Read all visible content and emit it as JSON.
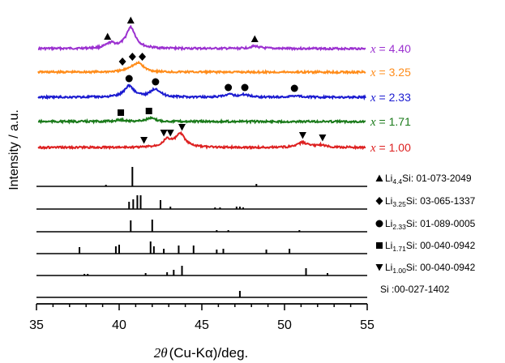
{
  "chart_data": {
    "type": "line",
    "xlabel": "2θ (Cu-Kα)/deg.",
    "xlabel_parts": {
      "theta": "2θ",
      "rest": "(Cu-Kα)/deg."
    },
    "ylabel": "Intensity / a.u.",
    "xlim": [
      35,
      55
    ],
    "x_ticks": [
      35,
      40,
      45,
      50,
      55
    ],
    "series": [
      {
        "name": "x = 4.40",
        "label": {
          "prefix": "x",
          "value": " = 4.40"
        },
        "color": "#9b30d0",
        "peaks": [
          {
            "x": 39.5,
            "h": 6
          },
          {
            "x": 40.7,
            "h": 26
          },
          {
            "x": 48.2,
            "h": 3
          }
        ],
        "markers": [
          {
            "x": 39.3,
            "symbol": "triangle-up"
          },
          {
            "x": 40.7,
            "symbol": "triangle-up"
          },
          {
            "x": 48.2,
            "symbol": "triangle-up"
          }
        ]
      },
      {
        "name": "x = 3.25",
        "label": {
          "prefix": "x",
          "value": " = 3.25"
        },
        "color": "#ff8c1a",
        "peaks": [
          {
            "x": 40.7,
            "h": 4
          },
          {
            "x": 41.2,
            "h": 10
          }
        ],
        "markers": [
          {
            "x": 40.2,
            "symbol": "diamond"
          },
          {
            "x": 40.8,
            "symbol": "diamond"
          },
          {
            "x": 41.4,
            "symbol": "diamond"
          }
        ]
      },
      {
        "name": "x = 2.33",
        "label": {
          "prefix": "x",
          "value": " = 2.33"
        },
        "color": "#1a1ad0",
        "peaks": [
          {
            "x": 40.6,
            "h": 14
          },
          {
            "x": 42.2,
            "h": 10
          },
          {
            "x": 46.7,
            "h": 3
          },
          {
            "x": 47.6,
            "h": 3
          },
          {
            "x": 50.7,
            "h": 2
          }
        ],
        "markers": [
          {
            "x": 40.6,
            "symbol": "circle"
          },
          {
            "x": 42.2,
            "symbol": "circle"
          },
          {
            "x": 46.6,
            "symbol": "circle"
          },
          {
            "x": 47.6,
            "symbol": "circle"
          },
          {
            "x": 50.6,
            "symbol": "circle"
          }
        ]
      },
      {
        "name": "x = 1.71",
        "label": {
          "prefix": "x",
          "value": " = 1.71"
        },
        "color": "#1a7a1a",
        "peaks": [
          {
            "x": 40.1,
            "h": 2
          },
          {
            "x": 41.9,
            "h": 4
          }
        ],
        "markers": [
          {
            "x": 40.1,
            "symbol": "square"
          },
          {
            "x": 41.8,
            "symbol": "square"
          }
        ]
      },
      {
        "name": "x = 1.00",
        "label": {
          "prefix": "x",
          "value": " = 1.00"
        },
        "color": "#dd2020",
        "peaks": [
          {
            "x": 42.9,
            "h": 9
          },
          {
            "x": 43.7,
            "h": 16
          },
          {
            "x": 51.1,
            "h": 6
          },
          {
            "x": 52.2,
            "h": 3
          }
        ],
        "markers": [
          {
            "x": 41.5,
            "symbol": "triangle-down"
          },
          {
            "x": 42.7,
            "symbol": "triangle-down"
          },
          {
            "x": 43.1,
            "symbol": "triangle-down"
          },
          {
            "x": 43.8,
            "symbol": "triangle-down"
          },
          {
            "x": 51.1,
            "symbol": "triangle-down"
          },
          {
            "x": 52.3,
            "symbol": "triangle-down"
          }
        ]
      }
    ],
    "references": [
      {
        "name": "Li4.4Si: 01-073-2049",
        "phase_base": "Li",
        "phase_sub": "4.4",
        "phase_tail": "Si: 01-073-2049",
        "symbol": "triangle-up",
        "lines": [
          {
            "x": 39.2,
            "h": 2
          },
          {
            "x": 40.8,
            "h": 24
          },
          {
            "x": 48.3,
            "h": 3
          }
        ]
      },
      {
        "name": "Li3.25Si: 03-065-1337",
        "phase_base": "Li",
        "phase_sub": "3.25",
        "phase_tail": "Si: 03-065-1337",
        "symbol": "diamond",
        "lines": [
          {
            "x": 40.6,
            "h": 9
          },
          {
            "x": 40.85,
            "h": 12
          },
          {
            "x": 41.1,
            "h": 17
          },
          {
            "x": 41.3,
            "h": 17
          },
          {
            "x": 42.5,
            "h": 11
          },
          {
            "x": 43.1,
            "h": 3
          },
          {
            "x": 45.8,
            "h": 2
          },
          {
            "x": 46.1,
            "h": 2
          },
          {
            "x": 47.1,
            "h": 3
          },
          {
            "x": 47.3,
            "h": 3
          },
          {
            "x": 47.5,
            "h": 2
          }
        ]
      },
      {
        "name": "Li2.33Si: 01-089-0005",
        "phase_base": "Li",
        "phase_sub": "2.33",
        "phase_tail": "Si: 01-089-0005",
        "symbol": "circle",
        "lines": [
          {
            "x": 40.7,
            "h": 14
          },
          {
            "x": 42.0,
            "h": 15
          },
          {
            "x": 45.9,
            "h": 2
          },
          {
            "x": 46.6,
            "h": 2
          },
          {
            "x": 50.9,
            "h": 2
          }
        ]
      },
      {
        "name": "Li1.71Si: 00-040-0942",
        "phase_base": "Li",
        "phase_sub": "1.71",
        "phase_tail": "Si: 00-040-0942",
        "symbol": "square",
        "lines": [
          {
            "x": 37.6,
            "h": 8
          },
          {
            "x": 39.8,
            "h": 9
          },
          {
            "x": 40.0,
            "h": 11
          },
          {
            "x": 41.9,
            "h": 15
          },
          {
            "x": 42.1,
            "h": 9
          },
          {
            "x": 42.7,
            "h": 6
          },
          {
            "x": 43.6,
            "h": 10
          },
          {
            "x": 44.5,
            "h": 10
          },
          {
            "x": 45.9,
            "h": 5
          },
          {
            "x": 46.3,
            "h": 6
          },
          {
            "x": 48.9,
            "h": 5
          },
          {
            "x": 50.3,
            "h": 6
          }
        ]
      },
      {
        "name": "Li1.00Si: 00-040-0942",
        "phase_base": "Li",
        "phase_sub": "1.00",
        "phase_tail": "Si: 00-040-0942",
        "symbol": "triangle-down",
        "lines": [
          {
            "x": 37.9,
            "h": 2
          },
          {
            "x": 38.1,
            "h": 2
          },
          {
            "x": 41.6,
            "h": 3
          },
          {
            "x": 42.9,
            "h": 4
          },
          {
            "x": 43.3,
            "h": 7
          },
          {
            "x": 43.8,
            "h": 12
          },
          {
            "x": 51.3,
            "h": 9
          },
          {
            "x": 52.6,
            "h": 3
          }
        ]
      },
      {
        "name": "Si :00-027-1402",
        "phase_base": "Si :00-027-1402",
        "phase_sub": "",
        "phase_tail": "",
        "symbol": "none",
        "lines": [
          {
            "x": 47.3,
            "h": 8
          }
        ]
      }
    ]
  }
}
